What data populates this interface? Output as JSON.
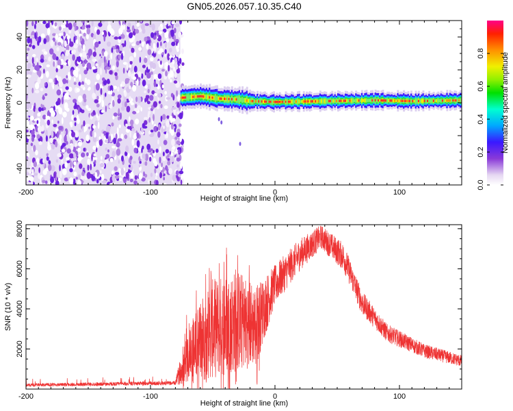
{
  "title": "GN05.2026.057.10.35.C40",
  "chart_data": [
    {
      "type": "heatmap",
      "name": "spectrogram",
      "xlabel": "Height of straight line (km)",
      "ylabel": "Frequency (Hz)",
      "xlim": [
        -200,
        150
      ],
      "ylim": [
        -50,
        50
      ],
      "xticks": [
        -200,
        -100,
        0,
        100
      ],
      "yticks": [
        -40,
        -20,
        0,
        20,
        40
      ],
      "noise_region_x": [
        -200,
        -76
      ],
      "signal_band": {
        "description": "narrow band near 0 Hz",
        "x_start": -76,
        "x_end": 150,
        "center_hz": [
          [
            -76,
            3
          ],
          [
            -60,
            4
          ],
          [
            -45,
            2.5
          ],
          [
            -30,
            2
          ],
          [
            -20,
            1
          ],
          [
            0,
            0.5
          ],
          [
            40,
            1
          ],
          [
            80,
            1.5
          ],
          [
            110,
            1
          ],
          [
            150,
            1.5
          ]
        ]
      },
      "colorbar": {
        "label": "Normalized spectral amplitude",
        "range": [
          0,
          1
        ],
        "ticks": [
          "0.0",
          "0.2",
          "0.4",
          "0.6",
          "0.8"
        ]
      }
    },
    {
      "type": "line",
      "name": "snr",
      "xlabel": "Height of straight line (km)",
      "ylabel": "SNR (10 * v/v)",
      "xlim": [
        -200,
        150
      ],
      "ylim": [
        0,
        8200
      ],
      "xticks": [
        -200,
        -100,
        0,
        100
      ],
      "yticks": [
        2000,
        4000,
        6000,
        8000
      ],
      "color": "#ee3333",
      "envelope": [
        {
          "x": -200,
          "y": 200,
          "spread": 80
        },
        {
          "x": -80,
          "y": 300,
          "spread": 100
        },
        {
          "x": -70,
          "y": 1800,
          "spread": 1500
        },
        {
          "x": -50,
          "y": 3000,
          "spread": 2500
        },
        {
          "x": -30,
          "y": 3400,
          "spread": 2600
        },
        {
          "x": -15,
          "y": 3200,
          "spread": 2000
        },
        {
          "x": 0,
          "y": 5200,
          "spread": 1000
        },
        {
          "x": 20,
          "y": 6700,
          "spread": 800
        },
        {
          "x": 37,
          "y": 7600,
          "spread": 600
        },
        {
          "x": 55,
          "y": 6600,
          "spread": 700
        },
        {
          "x": 70,
          "y": 4300,
          "spread": 600
        },
        {
          "x": 90,
          "y": 2800,
          "spread": 450
        },
        {
          "x": 120,
          "y": 1900,
          "spread": 350
        },
        {
          "x": 150,
          "y": 1400,
          "spread": 300
        }
      ]
    }
  ]
}
